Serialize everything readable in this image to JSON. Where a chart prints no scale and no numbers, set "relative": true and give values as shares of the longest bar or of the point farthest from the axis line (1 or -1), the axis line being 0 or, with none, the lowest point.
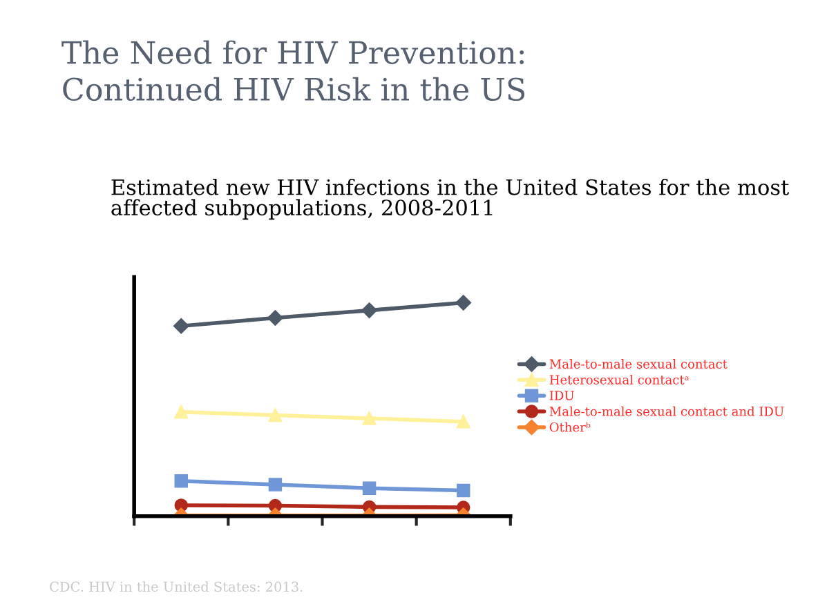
{
  "chart_data": {
    "type": "line",
    "relative": true,
    "title": "The Need for HIV Prevention:\nContinued HIV Risk in the US",
    "subtitle": "Estimated new HIV infections in the United States for the most\naffected subpopulations, 2008-2011",
    "annotations": [
      "CDC. HIV in the United States: 2013."
    ],
    "categories": [
      null,
      null,
      null,
      null
    ],
    "legend": "right",
    "grid": false,
    "series": [
      {
        "name": "Male-to-male sexual contact",
        "color": "#4f5a69",
        "marker": "diamond",
        "values": [
          0.891,
          0.929,
          0.964,
          1
        ]
      },
      {
        "name": "Heterosexual contactᵃ",
        "color": "#fff09a",
        "marker": "triangle",
        "values": [
          0.488,
          0.473,
          0.458,
          0.443
        ]
      },
      {
        "name": "IDU",
        "color": "#6f96d6",
        "marker": "square",
        "values": [
          0.165,
          0.148,
          0.131,
          0.12
        ]
      },
      {
        "name": "Male-to-male sexual contact and IDU",
        "color": "#b2291c",
        "marker": "circle",
        "values": [
          0.051,
          0.049,
          0.043,
          0.041
        ]
      },
      {
        "name": "Otherᵇ",
        "color": "#f5822f",
        "marker": "diamond",
        "values": [
          0.003,
          0.003,
          0.003,
          0.004
        ]
      }
    ]
  }
}
